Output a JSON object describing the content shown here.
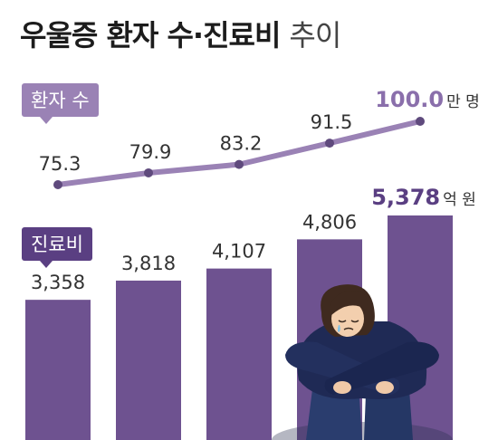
{
  "title": {
    "main": "우울증 환자 수·진료비",
    "sub": "추이"
  },
  "tags": {
    "patients": "환자 수",
    "cost": "진료비"
  },
  "chart_data": [
    {
      "type": "line",
      "name": "환자 수",
      "values": [
        75.3,
        79.9,
        83.2,
        91.5,
        100.0
      ],
      "labels": [
        "75.3",
        "79.9",
        "83.2",
        "91.5",
        "100.0"
      ],
      "unit": "만 명",
      "color": "#9a82b5"
    },
    {
      "type": "bar",
      "name": "진료비",
      "values": [
        3358,
        3818,
        4107,
        4806,
        5378
      ],
      "labels": [
        "3,358",
        "3,818",
        "4,107",
        "4,806",
        "5,378"
      ],
      "unit": "억 원",
      "color": "#6e5290"
    }
  ]
}
